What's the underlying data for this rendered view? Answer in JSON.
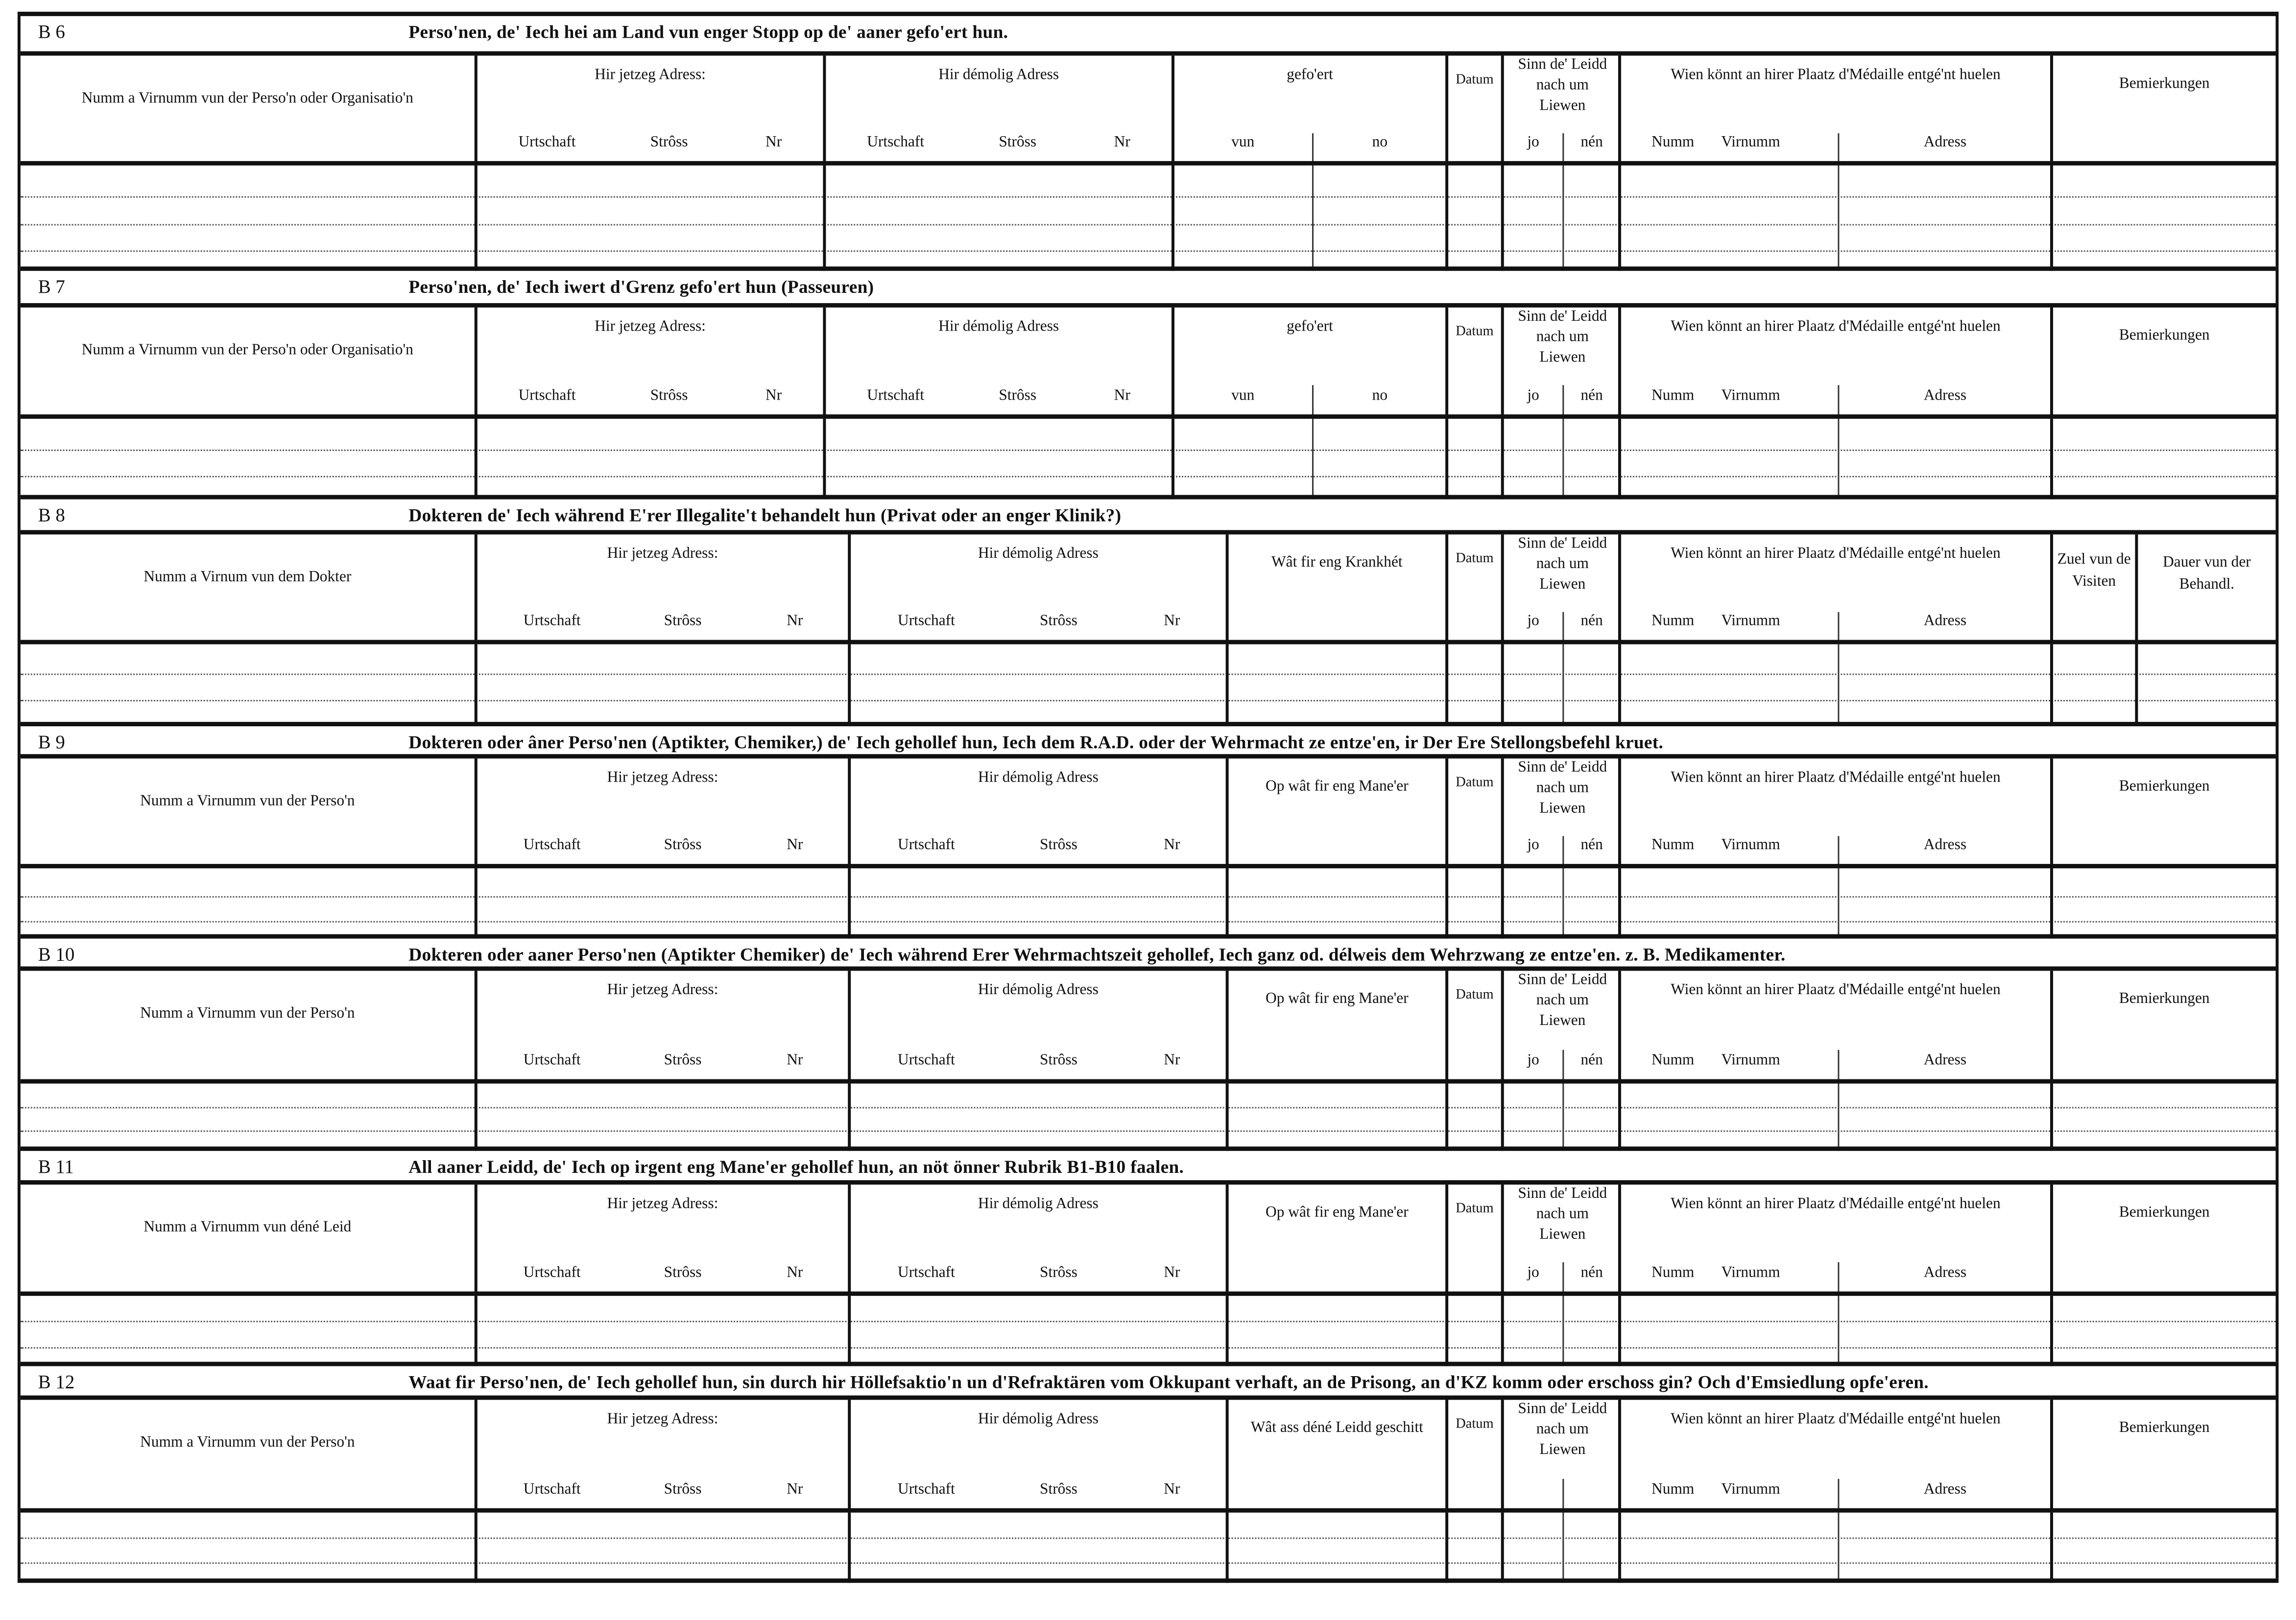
{
  "sections": [
    {
      "id": "B 6",
      "title": "Perso'nen, de' Iech hei am Land vun enger Stopp  op de' aaner gefo'ert hun.",
      "columns": [
        {
          "label": "Numm a Virnumm vun der Perso'n oder Organisatio'n",
          "sub": []
        },
        {
          "label": "Hir jetzeg Adress:",
          "sub": [
            "Urtschaft",
            "Strôss",
            "Nr"
          ]
        },
        {
          "label": "Hir démolig Adress",
          "sub": [
            "Urtschaft",
            "Strôss",
            "Nr"
          ]
        },
        {
          "label": "gefo'ert",
          "sub": [
            "vun",
            "no"
          ]
        },
        {
          "label": "Datum",
          "sub": []
        },
        {
          "label": "Sinn de' Leidd nach um Liewen",
          "sub": [
            "jo",
            "nén"
          ]
        },
        {
          "label": "Wien könnt an hirer Plaatz d'Médaille entgé'nt huelen",
          "sub": [
            "Numm",
            "Virnumm",
            "Adress"
          ]
        },
        {
          "label": "Bemierkungen",
          "sub": []
        }
      ]
    },
    {
      "id": "B 7",
      "title": "Perso'nen, de' Iech iwert d'Grenz gefo'ert hun (Passeuren)",
      "columns": [
        {
          "label": "Numm a Virnumm vun der Perso'n oder Organisatio'n",
          "sub": []
        },
        {
          "label": "Hir jetzeg Adress:",
          "sub": [
            "Urtschaft",
            "Strôss",
            "Nr"
          ]
        },
        {
          "label": "Hir démolig Adress",
          "sub": [
            "Urtschaft",
            "Strôss",
            "Nr"
          ]
        },
        {
          "label": "gefo'ert",
          "sub": [
            "vun",
            "no"
          ]
        },
        {
          "label": "Datum",
          "sub": []
        },
        {
          "label": "Sinn de' Leidd nach um Liewen",
          "sub": [
            "jo",
            "nén"
          ]
        },
        {
          "label": "Wien könnt an hirer Plaatz d'Médaille entgé'nt huelen",
          "sub": [
            "Numm",
            "Virnumm",
            "Adress"
          ]
        },
        {
          "label": "Bemierkungen",
          "sub": []
        }
      ]
    },
    {
      "id": "B 8",
      "title": "Dokteren de' Iech während E'rer Illegalite't behandelt hun (Privat oder an enger Klinik?)",
      "columns": [
        {
          "label": "Numm a Virnum vun dem Dokter",
          "sub": []
        },
        {
          "label": "Hir jetzeg Adress:",
          "sub": [
            "Urtschaft",
            "Strôss",
            "Nr"
          ]
        },
        {
          "label": "Hir démolig Adress",
          "sub": [
            "Urtschaft",
            "Strôss",
            "Nr"
          ]
        },
        {
          "label": "Wât fir eng Krankhét",
          "sub": []
        },
        {
          "label": "Datum",
          "sub": []
        },
        {
          "label": "Sinn de' Leidd nach um Liewen",
          "sub": [
            "jo",
            "nén"
          ]
        },
        {
          "label": "Wien könnt an hirer Plaatz d'Médaille entgé'nt huelen",
          "sub": [
            "Numm",
            "Virnumm",
            "Adress"
          ]
        },
        {
          "label": "Zuel vun de Visiten",
          "sub": []
        },
        {
          "label": "Dauer vun der Behandl.",
          "sub": []
        }
      ]
    },
    {
      "id": "B 9",
      "title": "Dokteren oder âner Perso'nen (Aptikter, Chemiker,) de' Iech gehollef hun, Iech dem R.A.D. oder der Wehrmacht ze entze'en, ir Der Ere Stellongsbefehl kruet.",
      "columns": [
        {
          "label": "Numm a Virnumm vun der Perso'n",
          "sub": []
        },
        {
          "label": "Hir jetzeg Adress:",
          "sub": [
            "Urtschaft",
            "Strôss",
            "Nr"
          ]
        },
        {
          "label": "Hir démolig Adress",
          "sub": [
            "Urtschaft",
            "Strôss",
            "Nr"
          ]
        },
        {
          "label": "Op wât fir eng Mane'er",
          "sub": []
        },
        {
          "label": "Datum",
          "sub": []
        },
        {
          "label": "Sinn de' Leidd nach um Liewen",
          "sub": [
            "jo",
            "nén"
          ]
        },
        {
          "label": "Wien könnt an hirer Plaatz d'Médaille entgé'nt huelen",
          "sub": [
            "Numm",
            "Virnumm",
            "Adress"
          ]
        },
        {
          "label": "Bemierkungen",
          "sub": []
        }
      ]
    },
    {
      "id": "B 10",
      "title": "Dokteren oder aaner Perso'nen (Aptikter Chemiker) de' Iech während Erer Wehrmachtszeit gehollef, Iech ganz od. délweis dem Wehrzwang ze entze'en. z. B. Medikamenter.",
      "columns": [
        {
          "label": "Numm a Virnumm vun der Perso'n",
          "sub": []
        },
        {
          "label": "Hir jetzeg Adress:",
          "sub": [
            "Urtschaft",
            "Strôss",
            "Nr"
          ]
        },
        {
          "label": "Hir démolig Adress",
          "sub": [
            "Urtschaft",
            "Strôss",
            "Nr"
          ]
        },
        {
          "label": "Op wât fir eng Mane'er",
          "sub": []
        },
        {
          "label": "Datum",
          "sub": []
        },
        {
          "label": "Sinn de' Leidd nach um Liewen",
          "sub": [
            "jo",
            "nén"
          ]
        },
        {
          "label": "Wien könnt an hirer Plaatz d'Médaille entgé'nt huelen",
          "sub": [
            "Numm",
            "Virnumm",
            "Adress"
          ]
        },
        {
          "label": "Bemierkungen",
          "sub": []
        }
      ]
    },
    {
      "id": "B 11",
      "title": "All aaner Leidd, de' Iech op irgent eng Mane'er  gehollef hun, an nöt önner Rubrik B1-B10 faalen.",
      "columns": [
        {
          "label": "Numm a Virnumm vun déné Leid",
          "sub": []
        },
        {
          "label": "Hir jetzeg Adress:",
          "sub": [
            "Urtschaft",
            "Strôss",
            "Nr"
          ]
        },
        {
          "label": "Hir démolig Adress",
          "sub": [
            "Urtschaft",
            "Strôss",
            "Nr"
          ]
        },
        {
          "label": "Op wât fir eng Mane'er",
          "sub": []
        },
        {
          "label": "Datum",
          "sub": []
        },
        {
          "label": "Sinn de' Leidd nach um Liewen",
          "sub": [
            "jo",
            "nén"
          ]
        },
        {
          "label": "Wien könnt an hirer Plaatz d'Médaille entgé'nt huelen",
          "sub": [
            "Numm",
            "Virnumm",
            "Adress"
          ]
        },
        {
          "label": "Bemierkungen",
          "sub": []
        }
      ]
    },
    {
      "id": "B 12",
      "title": "Waat fir Perso'nen, de' Iech gehollef hun, sin durch hir Höllefsaktio'n un d'Refraktären vom Okkupant verhaft, an de Prisong, an d'KZ komm oder  erschoss gin? Och d'Emsiedlung opfe'eren.",
      "columns": [
        {
          "label": "Numm a Virnumm vun der Perso'n",
          "sub": []
        },
        {
          "label": "Hir jetzeg Adress:",
          "sub": [
            "Urtschaft",
            "Strôss",
            "Nr"
          ]
        },
        {
          "label": "Hir démolig Adress",
          "sub": [
            "Urtschaft",
            "Strôss",
            "Nr"
          ]
        },
        {
          "label": "Wât ass déné Leidd geschitt",
          "sub": []
        },
        {
          "label": "Datum",
          "sub": []
        },
        {
          "label": "Sinn de' Leidd nach um Liewen",
          "sub": []
        },
        {
          "label": "Wien könnt an hirer Plaatz d'Médaille entgé'nt huelen",
          "sub": [
            "Numm",
            "Virnumm",
            "Adress"
          ]
        },
        {
          "label": "Bemierkungen",
          "sub": []
        }
      ]
    }
  ]
}
